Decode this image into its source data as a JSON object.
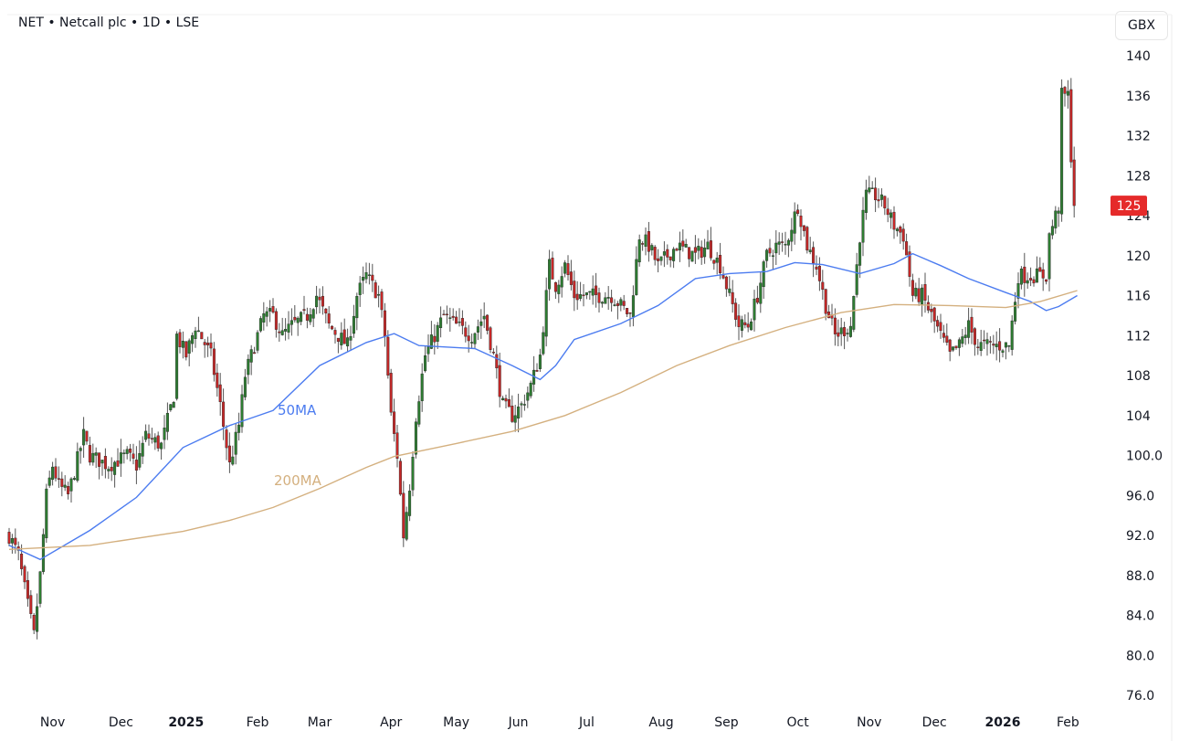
{
  "header": {
    "title": "NET • Netcall plc • 1D • LSE",
    "currency": "GBX"
  },
  "colors": {
    "up": "#2e7d32",
    "down": "#c62828",
    "ma50": "#4c7cf0",
    "ma200": "#d4b07f",
    "last_price_bg": "#e52a2a"
  },
  "chart_data": {
    "type": "candlestick",
    "title": "NET • Netcall plc • 1D • LSE",
    "x_unit": "trading day index",
    "ylim": [
      76,
      140
    ],
    "y_ticks": [
      "140",
      "136",
      "132",
      "128",
      "124",
      "120",
      "116",
      "112",
      "108",
      "104",
      "100.0",
      "96.0",
      "92.0",
      "88.0",
      "84.0",
      "80.0",
      "76.0"
    ],
    "x_ticks": [
      {
        "label": "Nov",
        "day": 14
      },
      {
        "label": "Dec",
        "day": 36
      },
      {
        "label": "2025",
        "day": 57,
        "bold": true
      },
      {
        "label": "Feb",
        "day": 80
      },
      {
        "label": "Mar",
        "day": 100
      },
      {
        "label": "Apr",
        "day": 123
      },
      {
        "label": "May",
        "day": 144
      },
      {
        "label": "Jun",
        "day": 164
      },
      {
        "label": "Jul",
        "day": 186
      },
      {
        "label": "Aug",
        "day": 210
      },
      {
        "label": "Sep",
        "day": 231
      },
      {
        "label": "Oct",
        "day": 254
      },
      {
        "label": "Nov",
        "day": 277
      },
      {
        "label": "Dec",
        "day": 298
      },
      {
        "label": "2026",
        "day": 320,
        "bold": true
      },
      {
        "label": "Feb",
        "day": 341
      }
    ],
    "last_price": "125",
    "close_anchors": [
      [
        0,
        92
      ],
      [
        3,
        90
      ],
      [
        6,
        85
      ],
      [
        8,
        82
      ],
      [
        10,
        88
      ],
      [
        12,
        96
      ],
      [
        14,
        99
      ],
      [
        16,
        97
      ],
      [
        19,
        96
      ],
      [
        24,
        102
      ],
      [
        26,
        100
      ],
      [
        32,
        99
      ],
      [
        38,
        100
      ],
      [
        41,
        99
      ],
      [
        44,
        102
      ],
      [
        49,
        101
      ],
      [
        53,
        106
      ],
      [
        54,
        112
      ],
      [
        57,
        110
      ],
      [
        60,
        113
      ],
      [
        65,
        110
      ],
      [
        68,
        105
      ],
      [
        71,
        99
      ],
      [
        74,
        103
      ],
      [
        76,
        108
      ],
      [
        79,
        111
      ],
      [
        82,
        114
      ],
      [
        85,
        114
      ],
      [
        88,
        112
      ],
      [
        91,
        113
      ],
      [
        96,
        114
      ],
      [
        99,
        116
      ],
      [
        103,
        113
      ],
      [
        109,
        111
      ],
      [
        112,
        116
      ],
      [
        115,
        118
      ],
      [
        119,
        116
      ],
      [
        121,
        112
      ],
      [
        123,
        104
      ],
      [
        125,
        100
      ],
      [
        127,
        92
      ],
      [
        129,
        97
      ],
      [
        131,
        104
      ],
      [
        134,
        110
      ],
      [
        137,
        112
      ],
      [
        140,
        114
      ],
      [
        144,
        113
      ],
      [
        149,
        112
      ],
      [
        153,
        114
      ],
      [
        156,
        110
      ],
      [
        159,
        105
      ],
      [
        162,
        104
      ],
      [
        165,
        105
      ],
      [
        168,
        107
      ],
      [
        171,
        110
      ],
      [
        174,
        119
      ],
      [
        176,
        117
      ],
      [
        179,
        119
      ],
      [
        182,
        116
      ],
      [
        188,
        116
      ],
      [
        194,
        116
      ],
      [
        200,
        114
      ],
      [
        203,
        122
      ],
      [
        206,
        121
      ],
      [
        209,
        119
      ],
      [
        215,
        121
      ],
      [
        221,
        120
      ],
      [
        225,
        121
      ],
      [
        229,
        119
      ],
      [
        232,
        116
      ],
      [
        235,
        113
      ],
      [
        238,
        113
      ],
      [
        241,
        116
      ],
      [
        244,
        120
      ],
      [
        247,
        121
      ],
      [
        250,
        121
      ],
      [
        254,
        125
      ],
      [
        257,
        121
      ],
      [
        260,
        119
      ],
      [
        263,
        115
      ],
      [
        266,
        112
      ],
      [
        271,
        113
      ],
      [
        274,
        122
      ],
      [
        276,
        126
      ],
      [
        279,
        126
      ],
      [
        282,
        125
      ],
      [
        285,
        123
      ],
      [
        288,
        122
      ],
      [
        291,
        116
      ],
      [
        294,
        116
      ],
      [
        297,
        114
      ],
      [
        300,
        112
      ],
      [
        303,
        110
      ],
      [
        306,
        111
      ],
      [
        309,
        113
      ],
      [
        312,
        111
      ],
      [
        318,
        111
      ],
      [
        322,
        111
      ],
      [
        325,
        118
      ],
      [
        329,
        118
      ],
      [
        334,
        118
      ],
      [
        335,
        122
      ],
      [
        338,
        125
      ],
      [
        339,
        136
      ],
      [
        341,
        136
      ],
      [
        342,
        130
      ],
      [
        343,
        125
      ]
    ],
    "series": [
      {
        "name": "50MA",
        "label": "50MA",
        "points": [
          [
            0,
            91
          ],
          [
            10,
            89.6
          ],
          [
            26,
            92.5
          ],
          [
            41,
            95.8
          ],
          [
            56,
            100.8
          ],
          [
            71,
            103
          ],
          [
            85,
            104.5
          ],
          [
            100,
            109
          ],
          [
            115,
            111.3
          ],
          [
            124,
            112.2
          ],
          [
            132,
            111
          ],
          [
            150,
            110.7
          ],
          [
            162,
            109
          ],
          [
            171,
            107.6
          ],
          [
            176,
            109
          ],
          [
            182,
            111.6
          ],
          [
            197,
            113.2
          ],
          [
            209,
            115
          ],
          [
            221,
            117.7
          ],
          [
            232,
            118.2
          ],
          [
            244,
            118.4
          ],
          [
            253,
            119.3
          ],
          [
            262,
            119.1
          ],
          [
            274,
            118.2
          ],
          [
            285,
            119.2
          ],
          [
            291,
            120.2
          ],
          [
            300,
            119
          ],
          [
            309,
            117.7
          ],
          [
            321,
            116.3
          ],
          [
            329,
            115.4
          ],
          [
            334,
            114.5
          ],
          [
            338,
            114.9
          ],
          [
            344,
            116
          ]
        ]
      },
      {
        "name": "200MA",
        "label": "200MA",
        "points": [
          [
            0,
            90.6
          ],
          [
            26,
            91
          ],
          [
            56,
            92.4
          ],
          [
            71,
            93.5
          ],
          [
            85,
            94.8
          ],
          [
            100,
            96.7
          ],
          [
            115,
            98.8
          ],
          [
            124,
            99.9
          ],
          [
            144,
            101.2
          ],
          [
            162,
            102.4
          ],
          [
            179,
            104
          ],
          [
            197,
            106.3
          ],
          [
            215,
            109
          ],
          [
            232,
            111
          ],
          [
            250,
            112.8
          ],
          [
            268,
            114.3
          ],
          [
            285,
            115.1
          ],
          [
            303,
            115
          ],
          [
            321,
            114.8
          ],
          [
            332,
            115.4
          ],
          [
            344,
            116.5
          ]
        ]
      }
    ]
  }
}
